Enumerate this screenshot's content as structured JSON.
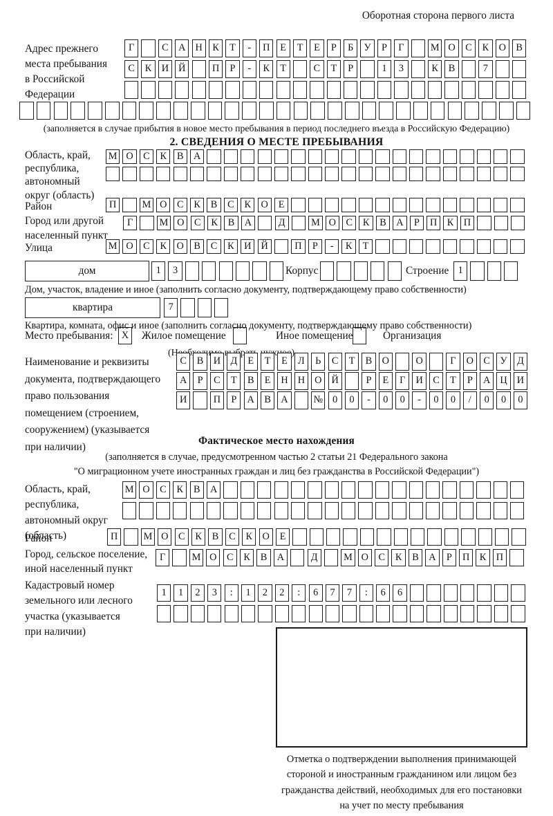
{
  "colors": {
    "ink": "#1f1f1f",
    "paper": "#ffffff"
  },
  "page": {
    "top_note": "Оборотная сторона первого листа"
  },
  "prev_address": {
    "label_lines": [
      "Адрес прежнего",
      "места пребывания",
      "в Российской",
      "Федерации"
    ],
    "rows": [
      {
        "count": 24,
        "cells": "Г САНКТ-ПЕТЕРБУРГ МОСКОВ"
      },
      {
        "count": 24,
        "cells": "СКИЙ ПР-КТ СТР 13 КВ 7"
      },
      {
        "count": 24,
        "cells": ""
      },
      {
        "count": 30,
        "cells": ""
      }
    ],
    "caption": "(заполняется в случае прибытия в новое место пребывания в период последнего въезда в Российскую Федерацию)"
  },
  "section2": {
    "title": "2. СВЕДЕНИЯ О МЕСТЕ ПРЕБЫВАНИЯ",
    "region": {
      "label_lines": [
        "Область, край,",
        "республика,",
        "автономный",
        "округ (область)"
      ],
      "rows": [
        {
          "count": 25,
          "cells": "МОСКВА"
        },
        {
          "count": 25,
          "cells": ""
        }
      ]
    },
    "district": {
      "label": "Район",
      "row": {
        "count": 25,
        "cells": "П МОСКВСКОЕ"
      }
    },
    "city": {
      "label_lines": [
        "Город или другой",
        "населенный пункт"
      ],
      "row": {
        "count": 24,
        "cells": "Г МОСКВА Д МОСКВАРПКП"
      }
    },
    "street": {
      "label": "Улица",
      "row": {
        "count": 25,
        "cells": "МОСКОВСКИЙ ПР-КТ"
      }
    },
    "house": {
      "field_label": "дом",
      "number_row": {
        "count": 8,
        "cells": "13"
      },
      "korpus_label": "Корпус",
      "korpus_row": {
        "count": 5,
        "cells": ""
      },
      "stroenie_label": "Строение",
      "stroenie_row": {
        "count": 4,
        "cells": "1"
      },
      "caption": "Дом, участок, владение и иное (заполнить согласно документу, подтверждающему право собственности)"
    },
    "apartment": {
      "field_label": "квартира",
      "row": {
        "count": 4,
        "cells": "7"
      },
      "caption": "Квартира, комната, офис и иное (заполнить согласно документу, подтверждающему право собственности)"
    },
    "stay_type": {
      "label": "Место пребывания:",
      "options": [
        {
          "label": "Жилое помещение",
          "mark": "X"
        },
        {
          "label": "Иное помещение",
          "mark": ""
        },
        {
          "label": "Организация",
          "mark": ""
        }
      ],
      "note": "(Необходимо выбрать нужное)"
    },
    "doc": {
      "label_lines": [
        "Наименование и реквизиты",
        "документа, подтверждающего",
        "право пользования",
        "помещением (строением,",
        "сооружением) (указывается",
        "при наличии)"
      ],
      "rows": [
        {
          "count": 21,
          "cells": "СВИДЕТЕЛЬСТВО О ГОСУД"
        },
        {
          "count": 21,
          "cells": "АРСТВЕННОЙ РЕГИСТРАЦИ"
        },
        {
          "count": 21,
          "cells": "И ПРАВА №00-00-00/000"
        }
      ]
    }
  },
  "fact_location": {
    "title": "Фактическое место нахождения",
    "caption_lines": [
      "(заполняется в случае, предусмотренном частью 2 статьи 21 Федерального закона",
      "\"О миграционном учете иностранных граждан и лиц без гражданства в Российской Федерации\")"
    ],
    "region": {
      "label_lines": [
        "Область, край,",
        "республика,",
        "автономный округ",
        "(область)"
      ],
      "rows": [
        {
          "count": 24,
          "cells": "МОСКВА"
        },
        {
          "count": 24,
          "cells": ""
        }
      ]
    },
    "district": {
      "label": "Район",
      "row": {
        "count": 25,
        "cells": "П МОСКВСКОЕ"
      }
    },
    "city": {
      "label_lines": [
        "Город, сельское поселение,",
        "иной населенный пункт"
      ],
      "row": {
        "count": 22,
        "cells": "Г МОСКВА Д МОСКВАРПКП"
      }
    },
    "cadastre": {
      "label_lines": [
        "Кадастровый номер",
        "земельного или лесного",
        "участка (указывается",
        "при наличии)"
      ],
      "rows": [
        {
          "count": 22,
          "cells": "1123:122:677:66"
        },
        {
          "count": 22,
          "cells": ""
        }
      ]
    }
  },
  "stamp": {
    "caption_lines": [
      "Отметка о подтверждении выполнения принимающей",
      "стороной и иностранным гражданином или лицом без",
      "гражданства действий, необходимых для его постановки",
      "на учет по месту пребывания"
    ]
  }
}
